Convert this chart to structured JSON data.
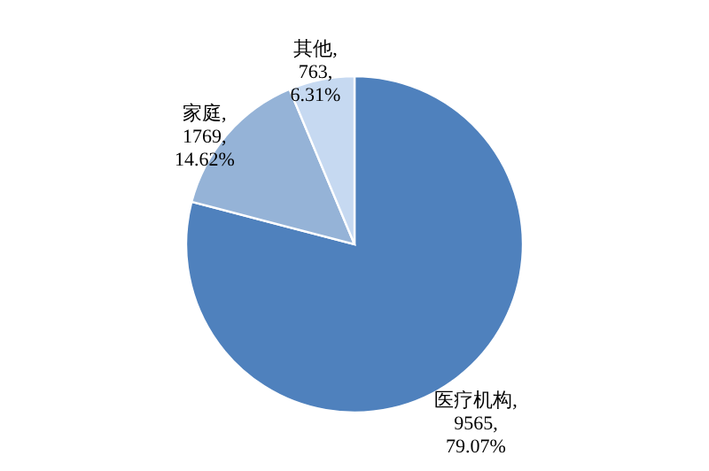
{
  "chart_data": {
    "type": "pie",
    "categories": [
      "医疗机构",
      "家庭",
      "其他"
    ],
    "values": [
      9565,
      1769,
      763
    ],
    "colors": [
      "#4f81bd",
      "#95b3d7",
      "#c6d9f1"
    ],
    "value_labels": [
      ", 9565, 79.07%",
      ", 1769, 14.62%",
      ", 763, 6.31%"
    ]
  }
}
